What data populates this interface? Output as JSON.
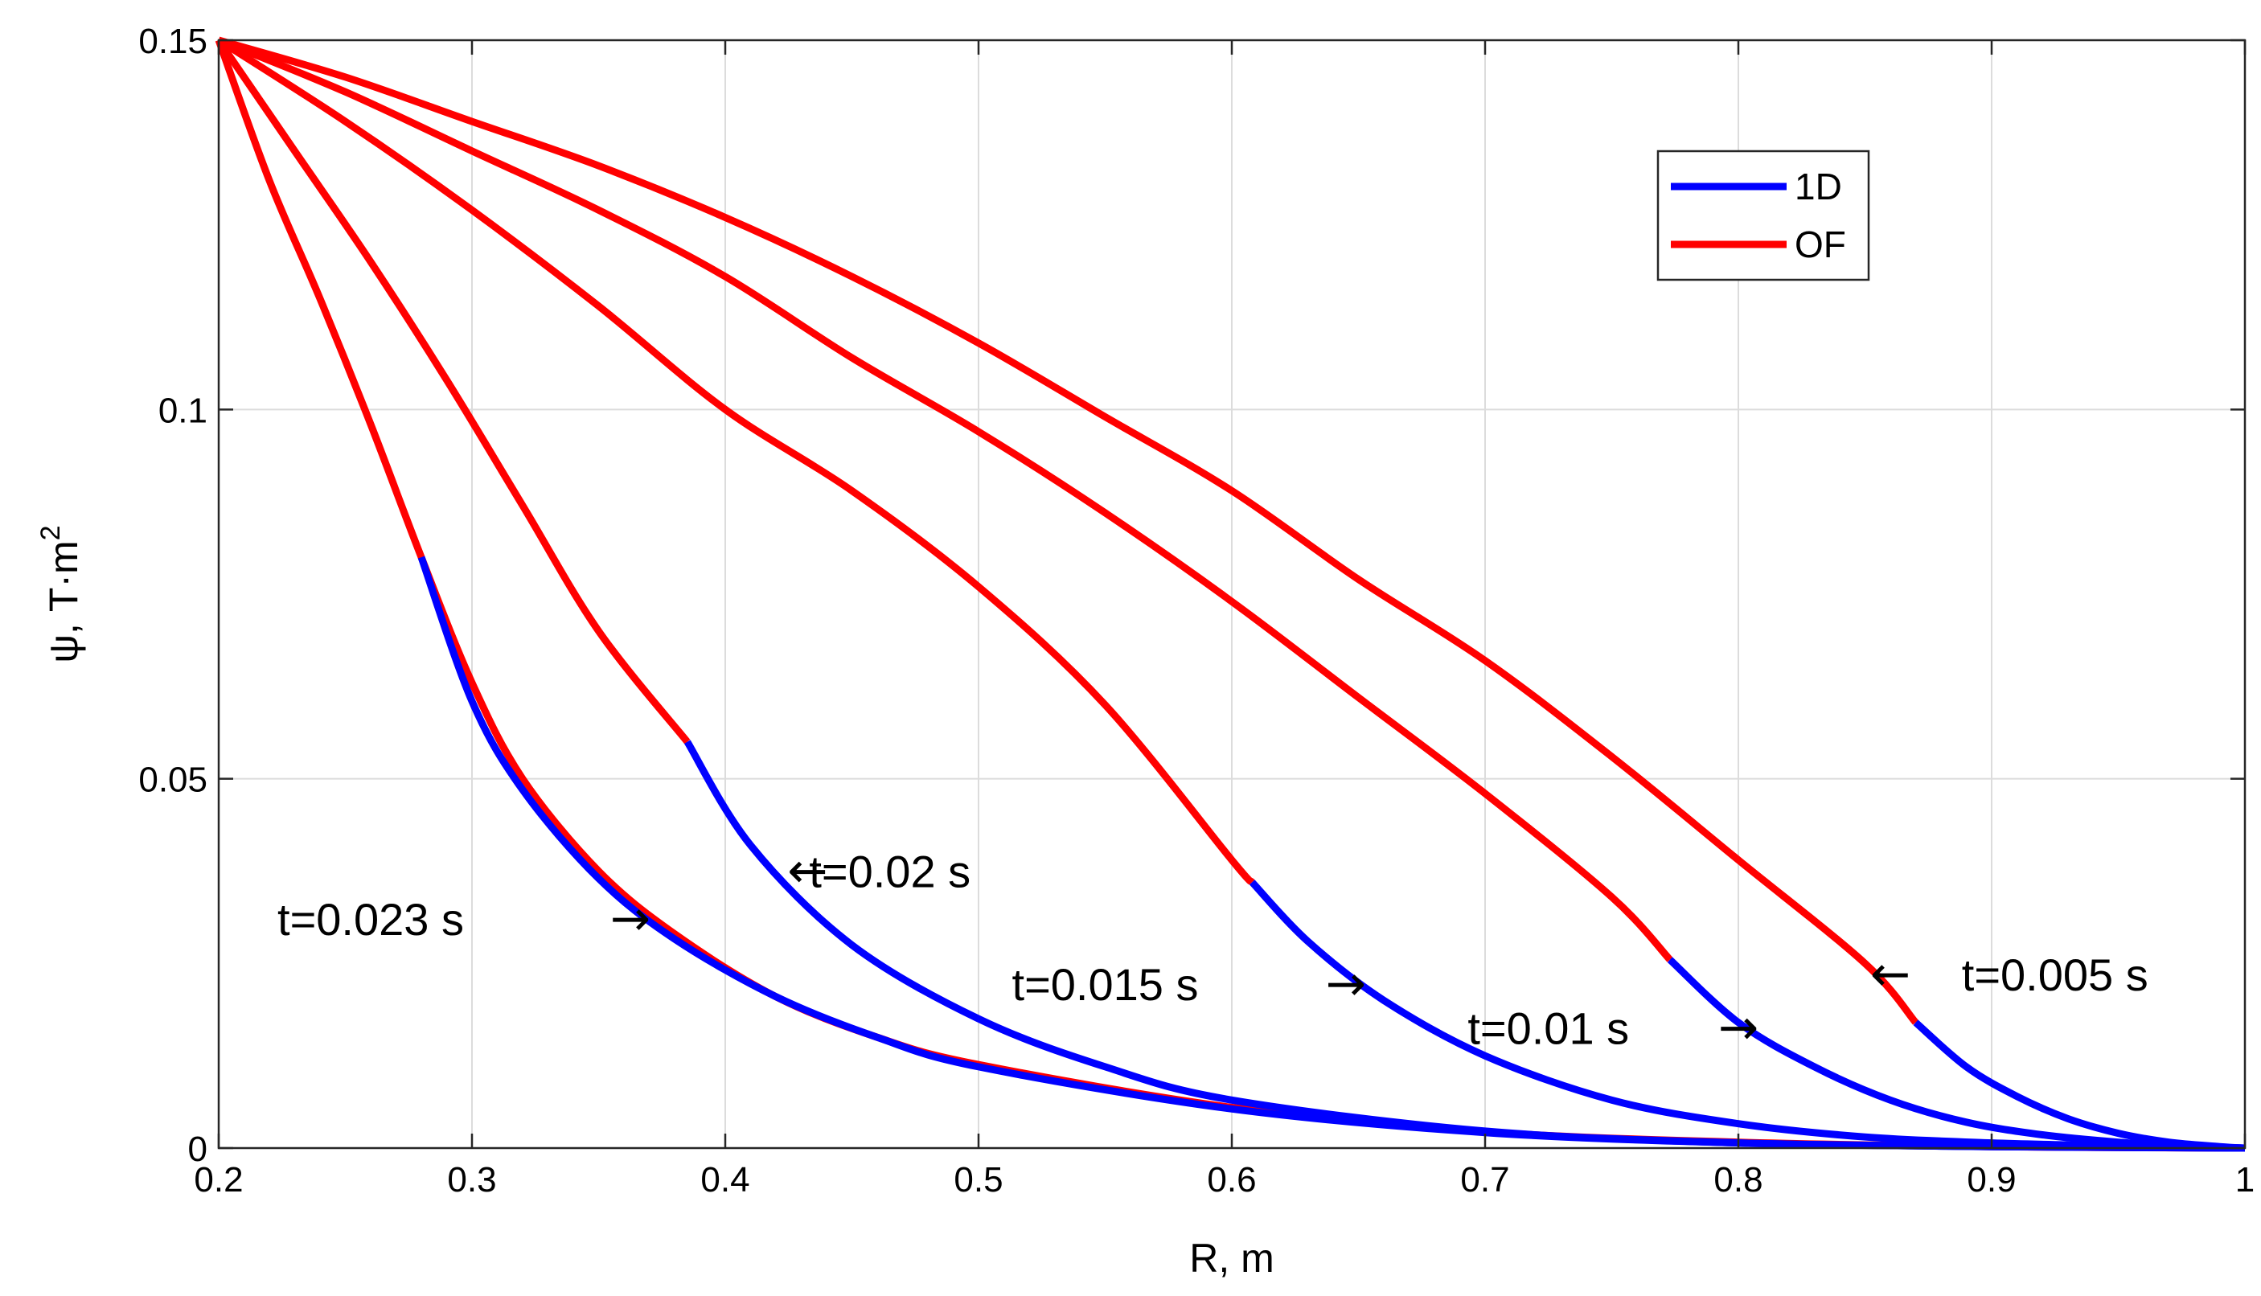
{
  "chart_data": {
    "type": "line",
    "title": "",
    "xlabel": "R, m",
    "ylabel": "ψ, T·m",
    "ylabel_exponent": "2",
    "xlim": [
      0.2,
      1.0
    ],
    "ylim": [
      0,
      0.15
    ],
    "grid": true,
    "legend_position": "top-right",
    "x_ticks": [
      0.2,
      0.3,
      0.4,
      0.5,
      0.6,
      0.7,
      0.8,
      0.9,
      1.0
    ],
    "x_tick_labels": [
      "0.2",
      "0.3",
      "0.4",
      "0.5",
      "0.6",
      "0.7",
      "0.8",
      "0.9",
      "1"
    ],
    "y_ticks": [
      0,
      0.05,
      0.1,
      0.15
    ],
    "y_tick_labels": [
      "0",
      "0.05",
      "0.1",
      "0.15"
    ],
    "legend": [
      {
        "name": "1D",
        "color": "#0000ff"
      },
      {
        "name": "OF",
        "color": "#ff0000"
      }
    ],
    "series": [
      {
        "name": "OF",
        "label": "t=0.005 s",
        "color": "#ff0000",
        "x": [
          0.2,
          0.25,
          0.3,
          0.35,
          0.4,
          0.45,
          0.5,
          0.55,
          0.6,
          0.65,
          0.7,
          0.75,
          0.8,
          0.85,
          0.87
        ],
        "y": [
          0.15,
          0.145,
          0.139,
          0.133,
          0.126,
          0.118,
          0.109,
          0.099,
          0.089,
          0.077,
          0.066,
          0.053,
          0.039,
          0.025,
          0.017
        ]
      },
      {
        "name": "1D",
        "label": "t=0.005 s",
        "color": "#0000ff",
        "x": [
          0.87,
          0.89,
          0.91,
          0.93,
          0.95,
          0.97,
          0.99,
          1.0
        ],
        "y": [
          0.017,
          0.011,
          0.007,
          0.004,
          0.002,
          0.0008,
          0.0002,
          0.0
        ]
      },
      {
        "name": "OF",
        "label": "t=0.01 s",
        "color": "#ff0000",
        "x": [
          0.2,
          0.25,
          0.3,
          0.35,
          0.4,
          0.45,
          0.5,
          0.55,
          0.6,
          0.65,
          0.7,
          0.75,
          0.773
        ],
        "y": [
          0.15,
          0.143,
          0.135,
          0.127,
          0.118,
          0.107,
          0.097,
          0.086,
          0.074,
          0.061,
          0.048,
          0.034,
          0.0255
        ]
      },
      {
        "name": "1D",
        "label": "t=0.01 s",
        "color": "#0000ff",
        "x": [
          0.773,
          0.8,
          0.83,
          0.86,
          0.89,
          0.92,
          0.95,
          0.98,
          1.0
        ],
        "y": [
          0.0255,
          0.017,
          0.011,
          0.0065,
          0.0035,
          0.0018,
          0.0008,
          0.0002,
          0.0
        ]
      },
      {
        "name": "OF",
        "label": "t=0.015 s",
        "color": "#ff0000",
        "x": [
          0.2,
          0.25,
          0.3,
          0.35,
          0.4,
          0.45,
          0.5,
          0.55,
          0.6,
          0.608
        ],
        "y": [
          0.15,
          0.139,
          0.127,
          0.114,
          0.1,
          0.089,
          0.076,
          0.06,
          0.039,
          0.036
        ]
      },
      {
        "name": "1D",
        "label": "t=0.015 s",
        "color": "#0000ff",
        "x": [
          0.608,
          0.63,
          0.66,
          0.7,
          0.75,
          0.8,
          0.85,
          0.9,
          0.95,
          1.0
        ],
        "y": [
          0.036,
          0.028,
          0.02,
          0.0125,
          0.0065,
          0.0033,
          0.0015,
          0.0007,
          0.0003,
          0.0
        ]
      },
      {
        "name": "OF",
        "label": "t=0.02 s",
        "color": "#ff0000",
        "x": [
          0.2,
          0.23,
          0.26,
          0.29,
          0.32,
          0.35,
          0.385
        ],
        "y": [
          0.15,
          0.135,
          0.12,
          0.104,
          0.087,
          0.07,
          0.055
        ]
      },
      {
        "name": "1D",
        "label": "t=0.02 s",
        "color": "#0000ff",
        "x": [
          0.385,
          0.41,
          0.45,
          0.5,
          0.55,
          0.6,
          0.7,
          0.8,
          0.9,
          1.0
        ],
        "y": [
          0.055,
          0.041,
          0.0275,
          0.0175,
          0.011,
          0.0065,
          0.0023,
          0.0007,
          0.0002,
          0.0
        ]
      },
      {
        "name": "OF",
        "label": "t=0.023 s",
        "color": "#ff0000",
        "x": [
          0.2,
          0.22,
          0.24,
          0.26,
          0.28,
          0.3,
          0.32,
          0.35,
          0.38,
          0.42,
          0.46,
          0.5,
          0.6,
          0.7,
          0.8,
          0.9,
          1.0
        ],
        "y": [
          0.15,
          0.131,
          0.115,
          0.098,
          0.08,
          0.063,
          0.05,
          0.0375,
          0.029,
          0.0205,
          0.015,
          0.0113,
          0.0055,
          0.0022,
          0.0008,
          0.0002,
          0.0
        ]
      },
      {
        "name": "1D",
        "label": "t=0.023 s",
        "color": "#0000ff",
        "x": [
          0.28,
          0.3,
          0.32,
          0.35,
          0.38,
          0.42,
          0.46,
          0.5,
          0.6,
          0.7,
          0.8,
          0.9,
          1.0
        ],
        "y": [
          0.08,
          0.0605,
          0.0485,
          0.0365,
          0.0283,
          0.0205,
          0.015,
          0.011,
          0.0053,
          0.0021,
          0.0007,
          0.0002,
          0.0
        ]
      }
    ],
    "annotations": [
      {
        "text": "t=0.023 s",
        "x": 0.26,
        "y": 0.031
      },
      {
        "text": "t=0.02 s",
        "x": 0.465,
        "y": 0.0375
      },
      {
        "text": "t=0.015 s",
        "x": 0.55,
        "y": 0.0222
      },
      {
        "text": "t=0.01 s",
        "x": 0.725,
        "y": 0.0163
      },
      {
        "text": "t=0.005 s",
        "x": 0.925,
        "y": 0.0235
      }
    ],
    "arrows": [
      {
        "glyph": "→",
        "x": 0.3625,
        "y": 0.031
      },
      {
        "glyph": "←",
        "x": 0.4325,
        "y": 0.0375
      },
      {
        "glyph": "→",
        "x": 0.645,
        "y": 0.0222
      },
      {
        "glyph": "→",
        "x": 0.8,
        "y": 0.0163
      },
      {
        "glyph": "←",
        "x": 0.86,
        "y": 0.0235
      }
    ]
  }
}
